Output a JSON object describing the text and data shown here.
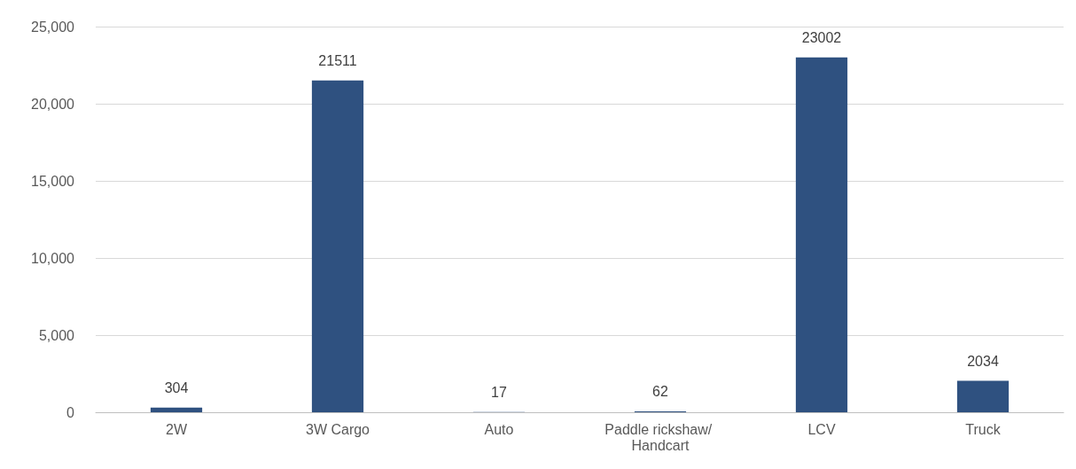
{
  "chart_data": {
    "type": "bar",
    "categories": [
      "2W",
      "3W Cargo",
      "Auto",
      "Paddle rickshaw/ Handcart",
      "LCV",
      "Truck"
    ],
    "values": [
      304,
      21511,
      17,
      62,
      23002,
      2034
    ],
    "color": "#2f5180",
    "ylim": [
      0,
      25000
    ],
    "yticks": [
      {
        "value": 0,
        "label": "0"
      },
      {
        "value": 5000,
        "label": "5,000"
      },
      {
        "value": 10000,
        "label": "10,000"
      },
      {
        "value": 15000,
        "label": "15,000"
      },
      {
        "value": 20000,
        "label": "20,000"
      },
      {
        "value": 25000,
        "label": "25,000"
      }
    ],
    "grid": "y",
    "data_labels": true
  }
}
